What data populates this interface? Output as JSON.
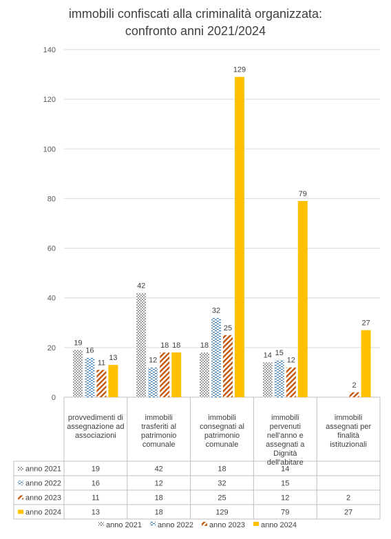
{
  "chart_data": {
    "type": "bar",
    "title": "immobili confiscati alla criminalità organizzata:\nconfronto anni 2021/2024",
    "categories": [
      "provvedimenti di assegnazione ad associazioni",
      "immobili trasferiti al patrimonio comunale",
      "immobili consegnati al patrimonio comunale",
      "immobili pervenuti nell'anno e assegnati a Dignità dell'abitare",
      "immobili assegnati per finalità istituzionali"
    ],
    "category_lines": [
      [
        "provvedimenti di",
        "assegnazione ad",
        "associazioni"
      ],
      [
        "immobili",
        "trasferiti al",
        "patrimonio",
        "comunale"
      ],
      [
        "immobili",
        "consegnati al",
        "patrimonio",
        "comunale"
      ],
      [
        "immobili",
        "pervenuti",
        "nell'anno e",
        "assegnati a",
        "Dignità",
        "dell'abitare"
      ],
      [
        "immobili",
        "assegnati per",
        "finalità",
        "istituzionali"
      ]
    ],
    "series": [
      {
        "name": "anno 2021",
        "values": [
          19,
          42,
          18,
          14,
          null
        ],
        "color": "#595959",
        "pattern": "dots"
      },
      {
        "name": "anno 2022",
        "values": [
          16,
          12,
          32,
          15,
          null
        ],
        "color": "#2E75B6",
        "pattern": "dashes"
      },
      {
        "name": "anno 2023",
        "values": [
          11,
          18,
          25,
          12,
          2
        ],
        "color": "#C55A11",
        "pattern": "diagonal"
      },
      {
        "name": "anno 2024",
        "values": [
          13,
          18,
          129,
          79,
          27
        ],
        "color": "#FFC000",
        "pattern": "solid"
      }
    ],
    "ylim": [
      0,
      140
    ],
    "yticks": [
      0,
      20,
      40,
      60,
      80,
      100,
      120,
      140
    ],
    "grid": true,
    "data_table": true,
    "legend": "bottom"
  }
}
